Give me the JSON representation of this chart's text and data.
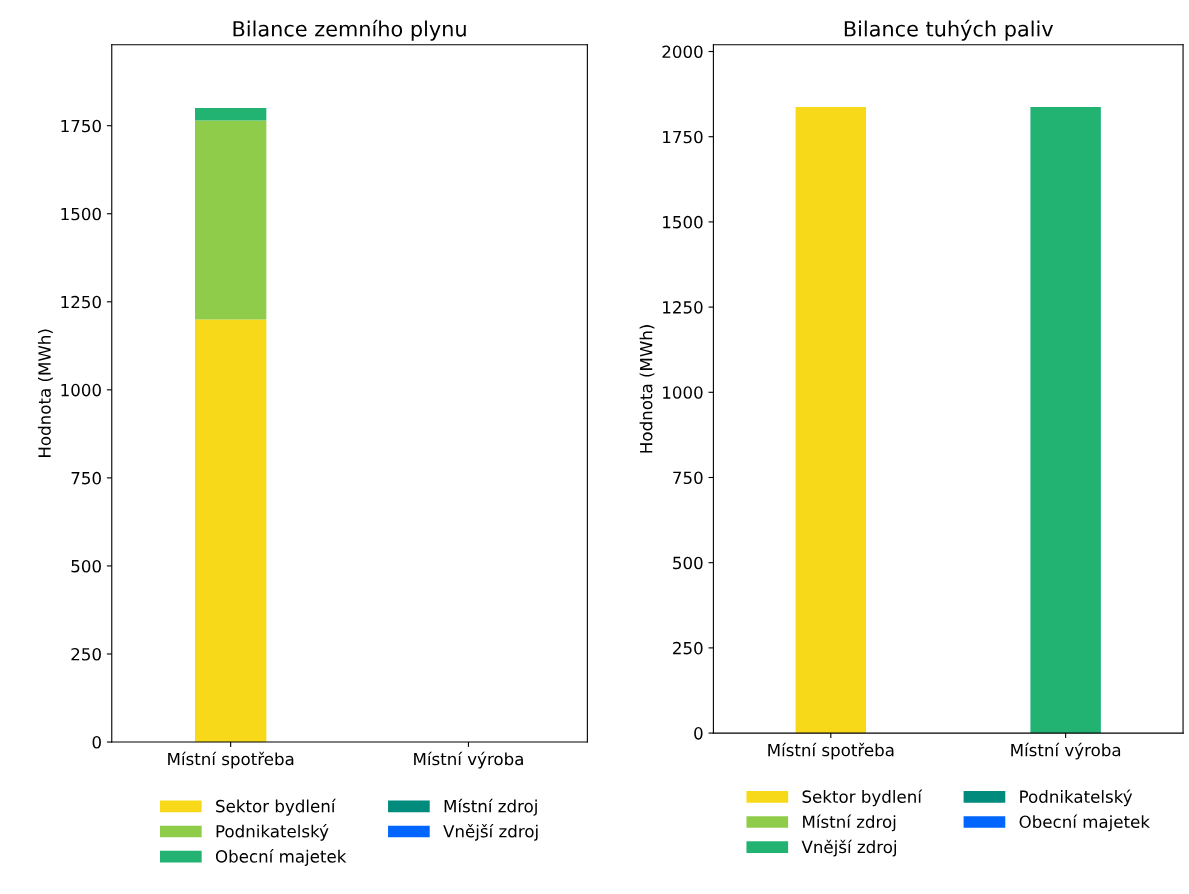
{
  "chart_data": [
    {
      "type": "bar",
      "title": "Bilance zemního plynu",
      "ylabel": "Hodnota (MWh)",
      "categories": [
        "Místní spotřeba",
        "Místní výroba"
      ],
      "stacked": true,
      "ylim": [
        0,
        1980
      ],
      "yticks": [
        0,
        250,
        500,
        750,
        1000,
        1250,
        1500,
        1750
      ],
      "legend": "bottom",
      "grid": false,
      "series": [
        {
          "name": "Sektor bydlení",
          "color": "#f7d91a",
          "values": [
            1200,
            null
          ]
        },
        {
          "name": "Podnikatelský",
          "color": "#8fcc4a",
          "values": [
            565,
            null
          ]
        },
        {
          "name": "Obecní majetek",
          "color": "#22b373",
          "values": [
            35,
            null
          ]
        },
        {
          "name": "Místní zdroj",
          "color": "#008b7d",
          "values": [
            null,
            0
          ]
        },
        {
          "name": "Vnější zdroj",
          "color": "#0066ff",
          "values": [
            null,
            0
          ]
        }
      ]
    },
    {
      "type": "bar",
      "title": "Bilance tuhých paliv",
      "ylabel": "Hodnota (MWh)",
      "categories": [
        "Místní spotřeba",
        "Místní výroba"
      ],
      "stacked": true,
      "ylim": [
        0,
        2020
      ],
      "yticks": [
        0,
        250,
        500,
        750,
        1000,
        1250,
        1500,
        1750,
        2000
      ],
      "legend": "bottom",
      "grid": false,
      "series": [
        {
          "name": "Sektor bydlení",
          "color": "#f7d91a",
          "values": [
            1837,
            null
          ]
        },
        {
          "name": "Místní zdroj",
          "color": "#8fcc4a",
          "values": [
            null,
            0
          ]
        },
        {
          "name": "Vnější zdroj",
          "color": "#22b373",
          "values": [
            null,
            1837
          ]
        },
        {
          "name": "Podnikatelský",
          "color": "#008b7d",
          "values": [
            0,
            null
          ]
        },
        {
          "name": "Obecní majetek",
          "color": "#0066ff",
          "values": [
            0,
            null
          ]
        }
      ]
    }
  ]
}
